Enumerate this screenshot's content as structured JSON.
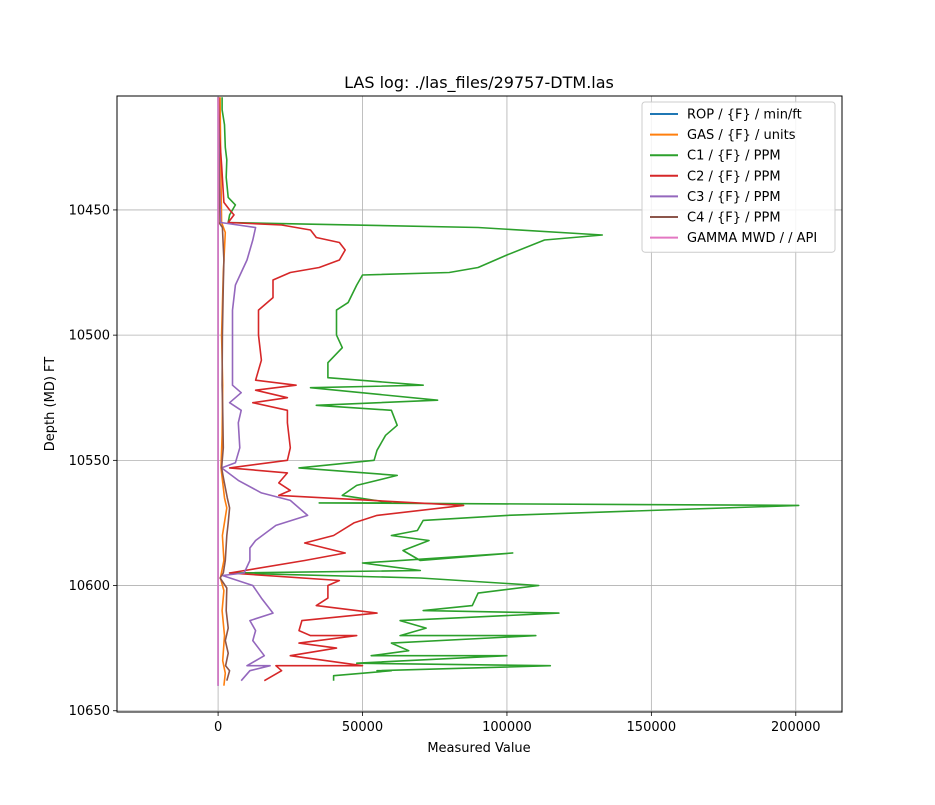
{
  "chart_data": {
    "type": "line",
    "title": "LAS log: ./las_files/29757-DTM.las",
    "xlabel": "Measured Value",
    "ylabel": "Depth (MD) FT",
    "xlim": [
      -35000,
      216000
    ],
    "ylim": [
      10650.5,
      10404.5
    ],
    "y_inverted": true,
    "grid": true,
    "legend_position": "top-right",
    "x_ticks": [
      0,
      50000,
      100000,
      150000,
      200000
    ],
    "x_tick_labels": [
      "0",
      "50000",
      "100000",
      "150000",
      "200000"
    ],
    "y_ticks": [
      10450,
      10500,
      10550,
      10600,
      10650
    ],
    "y_tick_labels": [
      "10450",
      "10500",
      "10550",
      "10600",
      "10650"
    ],
    "series": [
      {
        "name": "ROP / {F} / min/ft",
        "color": "#1f77b4",
        "points": [
          [
            0,
            10405
          ],
          [
            0,
            10640
          ]
        ]
      },
      {
        "name": "GAS / {F} / units",
        "color": "#ff7f0e",
        "points": [
          [
            700,
            10405
          ],
          [
            900,
            10430
          ],
          [
            1200,
            10455
          ],
          [
            2500,
            10459
          ],
          [
            1800,
            10475
          ],
          [
            1200,
            10500
          ],
          [
            1600,
            10520
          ],
          [
            1400,
            10540
          ],
          [
            1000,
            10553
          ],
          [
            2200,
            10565
          ],
          [
            3000,
            10569
          ],
          [
            1500,
            10580
          ],
          [
            2000,
            10590
          ],
          [
            800,
            10597
          ],
          [
            2000,
            10602
          ],
          [
            1400,
            10610
          ],
          [
            2200,
            10620
          ],
          [
            1600,
            10630
          ],
          [
            2500,
            10635
          ],
          [
            2000,
            10640
          ]
        ]
      },
      {
        "name": "C1 / {F} / PPM",
        "color": "#2ca02c",
        "points": [
          [
            1400,
            10405
          ],
          [
            1400,
            10410
          ],
          [
            2200,
            10416
          ],
          [
            2500,
            10425
          ],
          [
            3000,
            10430
          ],
          [
            2800,
            10437
          ],
          [
            3500,
            10445
          ],
          [
            6000,
            10448
          ],
          [
            4000,
            10452
          ],
          [
            3500,
            10455
          ],
          [
            90000,
            10457
          ],
          [
            133000,
            10460
          ],
          [
            113000,
            10462
          ],
          [
            100000,
            10468
          ],
          [
            90000,
            10473
          ],
          [
            80000,
            10475
          ],
          [
            50000,
            10476
          ],
          [
            48000,
            10480
          ],
          [
            45000,
            10487
          ],
          [
            41000,
            10490
          ],
          [
            41000,
            10500
          ],
          [
            43000,
            10505
          ],
          [
            38000,
            10511
          ],
          [
            38000,
            10517
          ],
          [
            71000,
            10520
          ],
          [
            32000,
            10521
          ],
          [
            76000,
            10526
          ],
          [
            34000,
            10528
          ],
          [
            60000,
            10530
          ],
          [
            62000,
            10536
          ],
          [
            58000,
            10540
          ],
          [
            55000,
            10546
          ],
          [
            54000,
            10550
          ],
          [
            28000,
            10553
          ],
          [
            62000,
            10556
          ],
          [
            48000,
            10560
          ],
          [
            43000,
            10564
          ],
          [
            60000,
            10567
          ],
          [
            35000,
            10567
          ],
          [
            201000,
            10568
          ],
          [
            100000,
            10572
          ],
          [
            71000,
            10574
          ],
          [
            69000,
            10578
          ],
          [
            60000,
            10580
          ],
          [
            73000,
            10582
          ],
          [
            64000,
            10586
          ],
          [
            70000,
            10590
          ],
          [
            102000,
            10587
          ],
          [
            50000,
            10591
          ],
          [
            70000,
            10594
          ],
          [
            4000,
            10595
          ],
          [
            70000,
            10597
          ],
          [
            111000,
            10600
          ],
          [
            90000,
            10603
          ],
          [
            88000,
            10608
          ],
          [
            71000,
            10610
          ],
          [
            118000,
            10611
          ],
          [
            63000,
            10614
          ],
          [
            72000,
            10617
          ],
          [
            63000,
            10620
          ],
          [
            110000,
            10620
          ],
          [
            60000,
            10623
          ],
          [
            66000,
            10626
          ],
          [
            53000,
            10628
          ],
          [
            100000,
            10628
          ],
          [
            48000,
            10631
          ],
          [
            115000,
            10632
          ],
          [
            55000,
            10634
          ],
          [
            60000,
            10634
          ],
          [
            40000,
            10636
          ],
          [
            40000,
            10638
          ]
        ]
      },
      {
        "name": "C2 / {F} / PPM",
        "color": "#d62728",
        "points": [
          [
            200,
            10405
          ],
          [
            500,
            10420
          ],
          [
            1200,
            10432
          ],
          [
            2000,
            10447
          ],
          [
            4000,
            10450
          ],
          [
            5500,
            10452
          ],
          [
            3500,
            10455
          ],
          [
            22000,
            10456
          ],
          [
            32000,
            10458
          ],
          [
            34000,
            10461
          ],
          [
            42000,
            10463
          ],
          [
            44000,
            10466
          ],
          [
            42000,
            10470
          ],
          [
            35000,
            10473
          ],
          [
            25000,
            10475
          ],
          [
            19000,
            10478
          ],
          [
            19000,
            10485
          ],
          [
            14000,
            10490
          ],
          [
            14000,
            10500
          ],
          [
            15000,
            10510
          ],
          [
            13000,
            10518
          ],
          [
            27000,
            10520
          ],
          [
            13000,
            10522
          ],
          [
            24000,
            10525
          ],
          [
            12000,
            10527
          ],
          [
            24000,
            10530
          ],
          [
            24000,
            10535
          ],
          [
            25000,
            10545
          ],
          [
            24000,
            10550
          ],
          [
            4000,
            10553
          ],
          [
            24000,
            10555
          ],
          [
            21000,
            10559
          ],
          [
            25000,
            10562
          ],
          [
            21000,
            10564
          ],
          [
            85000,
            10568
          ],
          [
            55000,
            10572
          ],
          [
            47000,
            10575
          ],
          [
            40000,
            10580
          ],
          [
            30000,
            10583
          ],
          [
            44000,
            10587
          ],
          [
            30000,
            10590
          ],
          [
            4000,
            10595
          ],
          [
            42000,
            10598
          ],
          [
            38000,
            10600
          ],
          [
            38000,
            10605
          ],
          [
            34000,
            10608
          ],
          [
            55000,
            10611
          ],
          [
            29000,
            10614
          ],
          [
            28000,
            10618
          ],
          [
            32000,
            10620
          ],
          [
            48000,
            10620
          ],
          [
            28000,
            10623
          ],
          [
            41000,
            10625
          ],
          [
            25000,
            10628
          ],
          [
            50000,
            10632
          ],
          [
            20000,
            10632
          ],
          [
            22000,
            10634
          ],
          [
            16000,
            10638
          ]
        ]
      },
      {
        "name": "C3 / {F} / PPM",
        "color": "#9467bd",
        "points": [
          [
            100,
            10405
          ],
          [
            300,
            10420
          ],
          [
            500,
            10440
          ],
          [
            900,
            10455
          ],
          [
            13000,
            10457
          ],
          [
            12000,
            10462
          ],
          [
            10000,
            10470
          ],
          [
            8000,
            10475
          ],
          [
            6000,
            10480
          ],
          [
            5000,
            10490
          ],
          [
            5000,
            10510
          ],
          [
            5000,
            10520
          ],
          [
            8000,
            10523
          ],
          [
            4000,
            10527
          ],
          [
            8000,
            10530
          ],
          [
            7000,
            10535
          ],
          [
            7500,
            10545
          ],
          [
            6000,
            10551
          ],
          [
            1200,
            10553
          ],
          [
            7000,
            10558
          ],
          [
            15000,
            10563
          ],
          [
            25000,
            10566
          ],
          [
            31000,
            10572
          ],
          [
            20000,
            10576
          ],
          [
            13000,
            10582
          ],
          [
            11000,
            10585
          ],
          [
            11000,
            10590
          ],
          [
            9000,
            10595
          ],
          [
            1500,
            10596
          ],
          [
            12000,
            10600
          ],
          [
            15000,
            10605
          ],
          [
            19000,
            10611
          ],
          [
            11000,
            10614
          ],
          [
            13000,
            10618
          ],
          [
            12000,
            10622
          ],
          [
            16000,
            10628
          ],
          [
            10000,
            10632
          ],
          [
            18000,
            10632
          ],
          [
            11000,
            10634
          ],
          [
            8000,
            10638
          ]
        ]
      },
      {
        "name": "C4 / {F} / PPM",
        "color": "#8c564b",
        "points": [
          [
            50,
            10405
          ],
          [
            200,
            10430
          ],
          [
            300,
            10455
          ],
          [
            1500,
            10457
          ],
          [
            2000,
            10470
          ],
          [
            1800,
            10480
          ],
          [
            1500,
            10500
          ],
          [
            1400,
            10520
          ],
          [
            1600,
            10530
          ],
          [
            1800,
            10545
          ],
          [
            1200,
            10553
          ],
          [
            2000,
            10558
          ],
          [
            3200,
            10565
          ],
          [
            4000,
            10569
          ],
          [
            3500,
            10575
          ],
          [
            3000,
            10580
          ],
          [
            2500,
            10590
          ],
          [
            1800,
            10595
          ],
          [
            700,
            10597
          ],
          [
            3000,
            10601
          ],
          [
            2800,
            10610
          ],
          [
            3500,
            10617
          ],
          [
            2500,
            10622
          ],
          [
            3500,
            10627
          ],
          [
            2600,
            10632
          ],
          [
            4000,
            10634
          ],
          [
            3000,
            10638
          ]
        ]
      },
      {
        "name": "GAMMA MWD /  / API",
        "color": "#e377c2",
        "points": [
          [
            0,
            10405
          ],
          [
            0,
            10500
          ],
          [
            0,
            10600
          ],
          [
            0,
            10640
          ]
        ]
      }
    ]
  }
}
